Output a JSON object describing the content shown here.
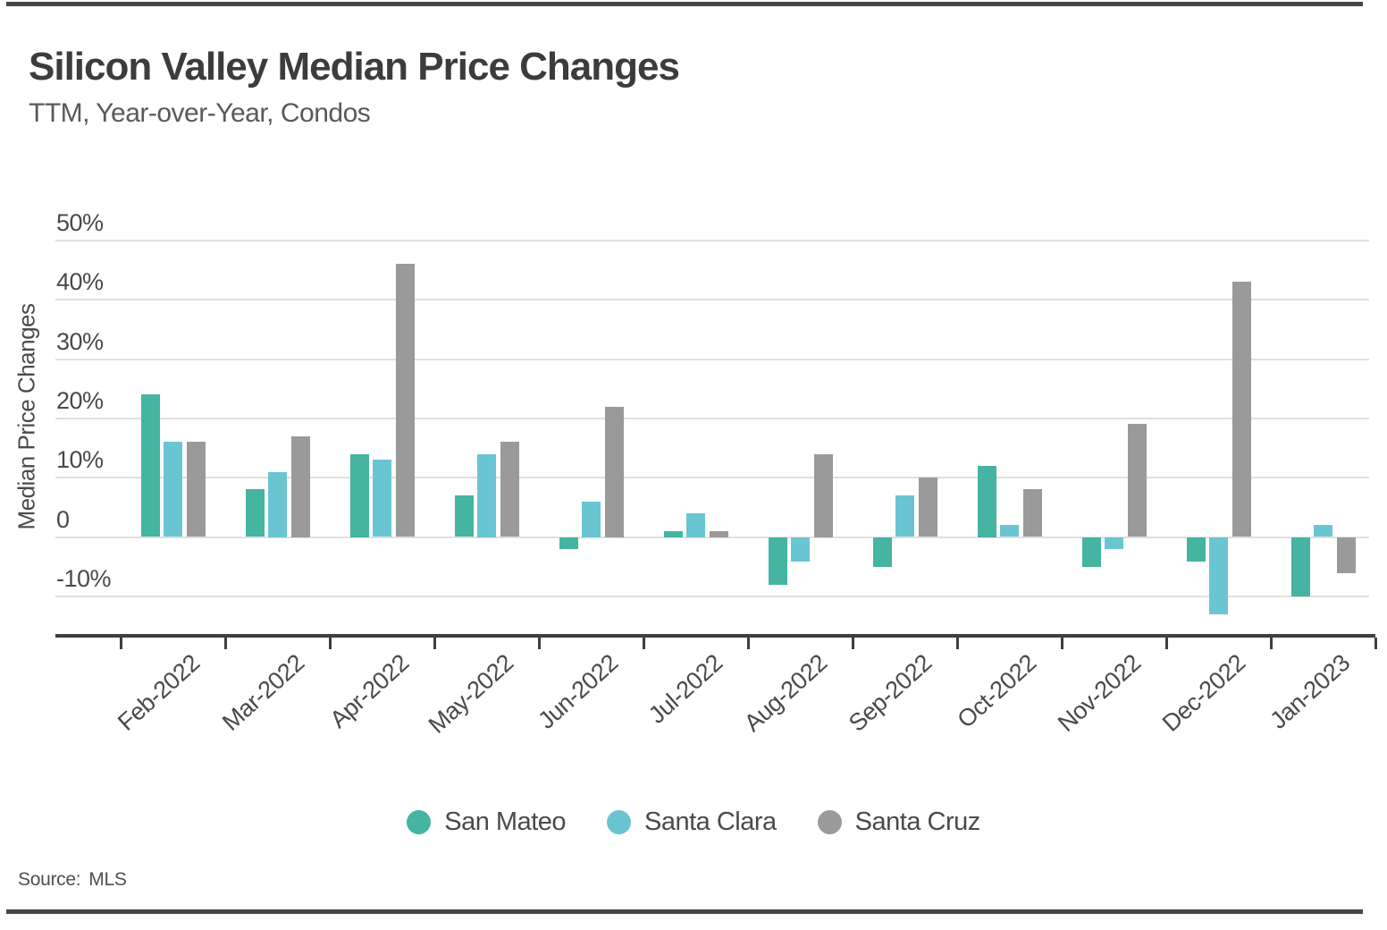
{
  "footer": {
    "source_label": "Source:",
    "source_value": "MLS"
  },
  "colors": {
    "san_mateo": "#45b4a1",
    "santa_clara": "#6ac5d2",
    "santa_cruz": "#9a9a9a",
    "gridline": "#e0e0e0",
    "axis": "#3f3f3f",
    "text": "#4a4a4a"
  },
  "chart_data": {
    "type": "bar",
    "title": "Silicon Valley Median Price Changes",
    "subtitle": "TTM, Year-over-Year, Condos",
    "ylabel": "Median Price Changes",
    "ylim": [
      -17,
      55
    ],
    "grid": true,
    "legend_position": "bottom",
    "yticks": [
      {
        "label": "50%",
        "value": 50
      },
      {
        "label": "40%",
        "value": 40
      },
      {
        "label": "30%",
        "value": 30
      },
      {
        "label": "20%",
        "value": 20
      },
      {
        "label": "10%",
        "value": 10
      },
      {
        "label": "0",
        "value": 0
      },
      {
        "label": "-10%",
        "value": -10
      }
    ],
    "categories": [
      "Feb-2022",
      "Mar-2022",
      "Apr-2022",
      "May-2022",
      "Jun-2022",
      "Jul-2022",
      "Aug-2022",
      "Sep-2022",
      "Oct-2022",
      "Nov-2022",
      "Dec-2022",
      "Jan-2023"
    ],
    "series": [
      {
        "name": "San Mateo",
        "color": "#45b4a1",
        "values": [
          24,
          8,
          14,
          7,
          -2,
          1,
          -8,
          -5,
          12,
          -5,
          -4,
          -10
        ]
      },
      {
        "name": "Santa Clara",
        "color": "#6ac5d2",
        "values": [
          16,
          11,
          13,
          14,
          6,
          4,
          -4,
          7,
          2,
          -2,
          -13,
          2
        ]
      },
      {
        "name": "Santa Cruz",
        "color": "#9a9a9a",
        "values": [
          16,
          17,
          46,
          16,
          22,
          1,
          14,
          10,
          8,
          19,
          43,
          -6
        ]
      }
    ],
    "source": "MLS"
  }
}
